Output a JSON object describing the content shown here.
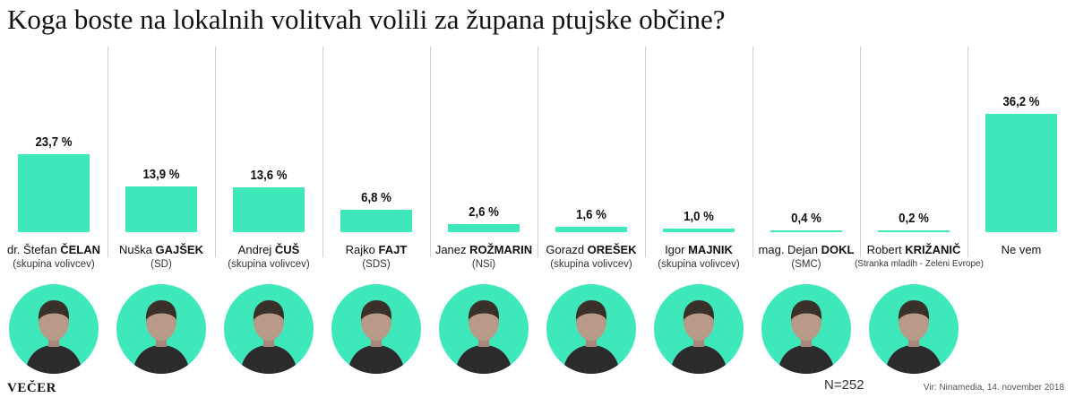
{
  "title": "Koga boste na lokalnih volitvah volili za župana ptujske občine?",
  "logo": "VEČER",
  "n_label": "N=252",
  "source": "Vir: Ninamedia, 14. november 2018",
  "colors": {
    "bar": "#3fe8bb",
    "avatar_bg": "#3fe8bb",
    "divider": "#cfcfcf"
  },
  "chart_data": {
    "type": "bar",
    "title": "Koga boste na lokalnih volitvah volili za župana ptujske občine?",
    "categories": [
      "dr. Štefan ČELAN",
      "Nuška GAJŠEK",
      "Andrej ČUŠ",
      "Rajko FAJT",
      "Janez ROŽMARIN",
      "Gorazd OREŠEK",
      "Igor MAJNIK",
      "mag. Dejan DOKL",
      "Robert KRIŽANIČ",
      "Ne vem"
    ],
    "values": [
      23.7,
      13.9,
      13.6,
      6.8,
      2.6,
      1.6,
      1.0,
      0.4,
      0.2,
      36.2
    ],
    "value_labels": [
      "23,7 %",
      "13,9 %",
      "13,6 %",
      "6,8 %",
      "2,6 %",
      "1,6 %",
      "1,0 %",
      "0,4 %",
      "0,2 %",
      "36,2 %"
    ],
    "unit": "%",
    "ylim": [
      0,
      40
    ],
    "grid": false,
    "candidates": [
      {
        "first": "dr. Štefan ",
        "last": "ČELAN",
        "party": "(skupina volivcev)",
        "photo": "portrait-photo"
      },
      {
        "first": "Nuška ",
        "last": "GAJŠEK",
        "party": "(SD)",
        "photo": "portrait-photo"
      },
      {
        "first": "Andrej ",
        "last": "ČUŠ",
        "party": "(skupina volivcev)",
        "photo": "portrait-photo"
      },
      {
        "first": "Rajko ",
        "last": "FAJT",
        "party": "(SDS)",
        "photo": "portrait-photo"
      },
      {
        "first": "Janez ",
        "last": "ROŽMARIN",
        "party": "(NSi)",
        "photo": "portrait-photo"
      },
      {
        "first": "Gorazd ",
        "last": "OREŠEK",
        "party": "(skupina volivcev)",
        "photo": "portrait-photo"
      },
      {
        "first": "Igor ",
        "last": "MAJNIK",
        "party": "(skupina volivcev)",
        "photo": "portrait-photo"
      },
      {
        "first": "mag. Dejan ",
        "last": "DOKL",
        "party": "(SMC)",
        "photo": "portrait-photo"
      },
      {
        "first": "Robert ",
        "last": "KRIŽANIČ",
        "party": "(Stranka mladih - Zeleni Evrope)",
        "photo": "portrait-photo"
      },
      {
        "first": "Ne vem",
        "last": "",
        "party": "",
        "photo": ""
      }
    ]
  }
}
